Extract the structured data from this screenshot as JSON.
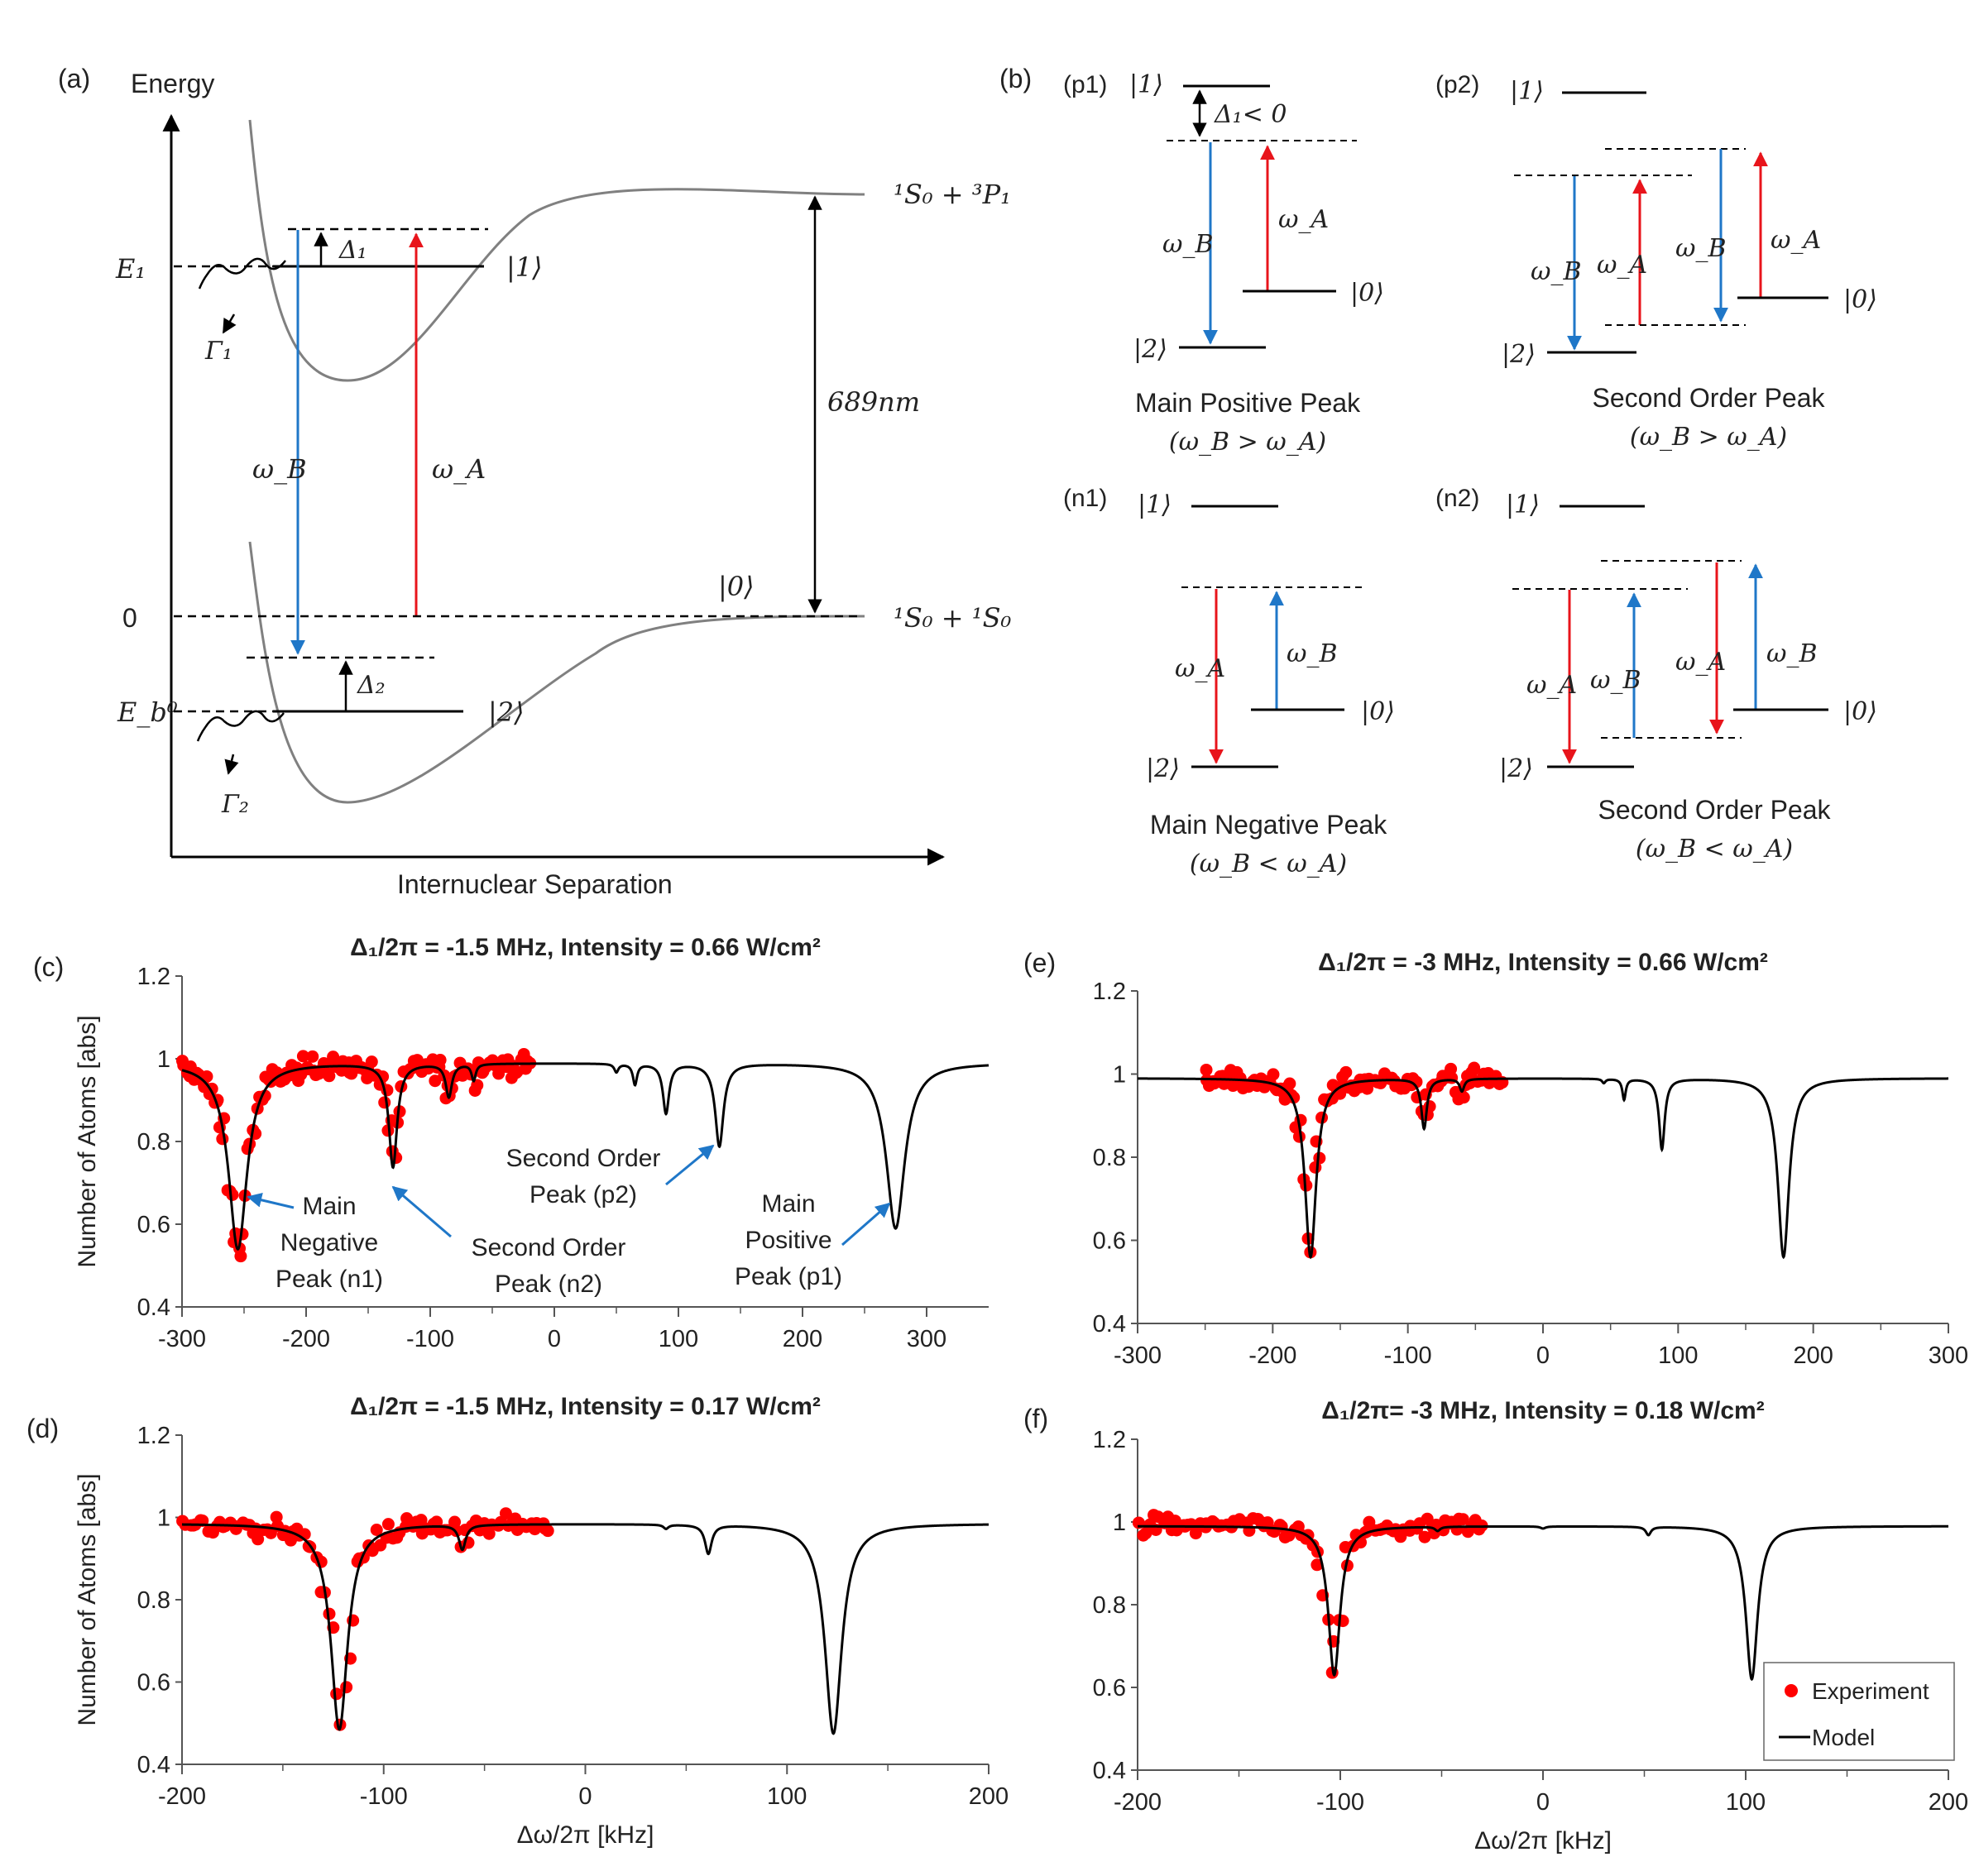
{
  "figure": {
    "panel_labels": {
      "a": "(a)",
      "b": "(b)",
      "c": "(c)",
      "d": "(d)",
      "e": "(e)",
      "f": "(f)"
    },
    "panel_a": {
      "energy_label": "Energy",
      "x_axis_label": "Internuclear Separation",
      "E1": "E₁",
      "zero": "0",
      "Eb0": "E_b⁰",
      "state1": "|1⟩",
      "state0": "|0⟩",
      "state2": "|2⟩",
      "delta1": "Δ₁",
      "delta2": "Δ₂",
      "gamma1": "Γ₁",
      "gamma2": "Γ₂",
      "omegaA": "ω_A",
      "omegaB": "ω_B",
      "wavelength": "689nm",
      "asymptote_upper": "¹S₀ + ³P₁",
      "asymptote_lower": "¹S₀ + ¹S₀"
    },
    "panel_b": {
      "p1_tag": "(p1)",
      "p2_tag": "(p2)",
      "n1_tag": "(n1)",
      "n2_tag": "(n2)",
      "delta_lt": "Δ₁< 0",
      "state1": "|1⟩",
      "state0": "|0⟩",
      "state2": "|2⟩",
      "omegaA": "ω_A",
      "omegaB": "ω_B",
      "p1_title": "Main Positive Peak",
      "p1_cond": "(ω_B > ω_A)",
      "p2_title": "Second Order Peak",
      "p2_cond": "(ω_B > ω_A)",
      "n1_title": "Main Negative Peak",
      "n1_cond": "(ω_B < ω_A)",
      "n2_title": "Second Order Peak",
      "n2_cond": "(ω_B < ω_A)"
    },
    "annotations_c": {
      "n1": [
        "Main",
        "Negative",
        "Peak (n1)"
      ],
      "n2": [
        "Second Order",
        "Peak (n2)"
      ],
      "p2": [
        "Second Order",
        "Peak (p2)"
      ],
      "p1": [
        "Main",
        "Positive",
        "Peak (p1)"
      ]
    },
    "legend": {
      "experiment": "Experiment",
      "model": "Model"
    },
    "colors": {
      "experiment": "#ff0000",
      "model": "#000000",
      "arrow_blue": "#1f77c8",
      "arrow_red": "#e8141b",
      "curve_gray": "#808080"
    }
  },
  "chart_data": [
    {
      "panel": "c",
      "type": "scatter",
      "title": "Δ₁/2π = -1.5 MHz, Intensity = 0.66 W/cm²",
      "xlabel": "",
      "ylabel": "Number of Atoms [abs]",
      "xlim": [
        -300,
        350
      ],
      "ylim": [
        0.4,
        1.2
      ],
      "xticks": [
        -300,
        -200,
        -100,
        0,
        100,
        200,
        300
      ],
      "yticks": [
        0.4,
        0.6,
        0.8,
        1,
        1.2
      ],
      "experiment_range": [
        -300,
        -20
      ],
      "model": {
        "baseline": 0.99,
        "dips": [
          {
            "x0": -255,
            "depth": 0.45,
            "width": 9
          },
          {
            "x0": -130,
            "depth": 0.25,
            "width": 4
          },
          {
            "x0": -85,
            "depth": 0.08,
            "width": 3
          },
          {
            "x0": -65,
            "depth": 0.04,
            "width": 2
          },
          {
            "x0": 50,
            "depth": 0.02,
            "width": 2
          },
          {
            "x0": 65,
            "depth": 0.05,
            "width": 2
          },
          {
            "x0": 90,
            "depth": 0.12,
            "width": 3
          },
          {
            "x0": 133,
            "depth": 0.2,
            "width": 4
          },
          {
            "x0": 275,
            "depth": 0.4,
            "width": 9
          }
        ]
      }
    },
    {
      "panel": "d",
      "type": "scatter",
      "title": "Δ₁/2π = -1.5 MHz, Intensity = 0.17 W/cm²",
      "xlabel": "Δω/2π [kHz]",
      "ylabel": "Number of Atoms [abs]",
      "xlim": [
        -200,
        200
      ],
      "ylim": [
        0.4,
        1.2
      ],
      "xticks": [
        -200,
        -100,
        0,
        100,
        200
      ],
      "yticks": [
        0.4,
        0.6,
        0.8,
        1,
        1.2
      ],
      "experiment_range": [
        -200,
        -18
      ],
      "model": {
        "baseline": 0.985,
        "dips": [
          {
            "x0": -122,
            "depth": 0.5,
            "width": 5
          },
          {
            "x0": -61,
            "depth": 0.06,
            "width": 2
          },
          {
            "x0": 40,
            "depth": 0.01,
            "width": 1.5
          },
          {
            "x0": 61,
            "depth": 0.07,
            "width": 2
          },
          {
            "x0": 123,
            "depth": 0.51,
            "width": 5
          }
        ]
      }
    },
    {
      "panel": "e",
      "type": "scatter",
      "title": "Δ₁/2π = -3 MHz, Intensity = 0.66 W/cm²",
      "xlabel": "",
      "ylabel": "",
      "xlim": [
        -300,
        300
      ],
      "ylim": [
        0.4,
        1.2
      ],
      "xticks": [
        -300,
        -200,
        -100,
        0,
        100,
        200,
        300
      ],
      "yticks": [
        0.4,
        0.6,
        0.8,
        1,
        1.2
      ],
      "experiment_range": [
        -250,
        -30
      ],
      "model": {
        "baseline": 0.99,
        "dips": [
          {
            "x0": -172,
            "depth": 0.43,
            "width": 5
          },
          {
            "x0": -88,
            "depth": 0.12,
            "width": 2.5
          },
          {
            "x0": -60,
            "depth": 0.03,
            "width": 2
          },
          {
            "x0": 45,
            "depth": 0.01,
            "width": 1.5
          },
          {
            "x0": 60,
            "depth": 0.05,
            "width": 1.5
          },
          {
            "x0": 88,
            "depth": 0.17,
            "width": 2.5
          },
          {
            "x0": 178,
            "depth": 0.43,
            "width": 5
          }
        ]
      }
    },
    {
      "panel": "f",
      "type": "scatter",
      "title": "Δ₁/2π= -3 MHz, Intensity = 0.18 W/cm²",
      "xlabel": "Δω/2π [kHz]",
      "ylabel": "",
      "xlim": [
        -200,
        200
      ],
      "ylim": [
        0.4,
        1.2
      ],
      "xticks": [
        -200,
        -100,
        0,
        100,
        200
      ],
      "yticks": [
        0.4,
        0.6,
        0.8,
        1,
        1.2
      ],
      "experiment_range": [
        -200,
        -30
      ],
      "legend": "bottom-right",
      "model": {
        "baseline": 0.99,
        "dips": [
          {
            "x0": -103,
            "depth": 0.36,
            "width": 3.5
          },
          {
            "x0": -52,
            "depth": 0.01,
            "width": 1.5
          },
          {
            "x0": 0,
            "depth": 0.005,
            "width": 1.5
          },
          {
            "x0": 52,
            "depth": 0.02,
            "width": 1.5
          },
          {
            "x0": 103,
            "depth": 0.37,
            "width": 3.5
          }
        ]
      }
    }
  ]
}
